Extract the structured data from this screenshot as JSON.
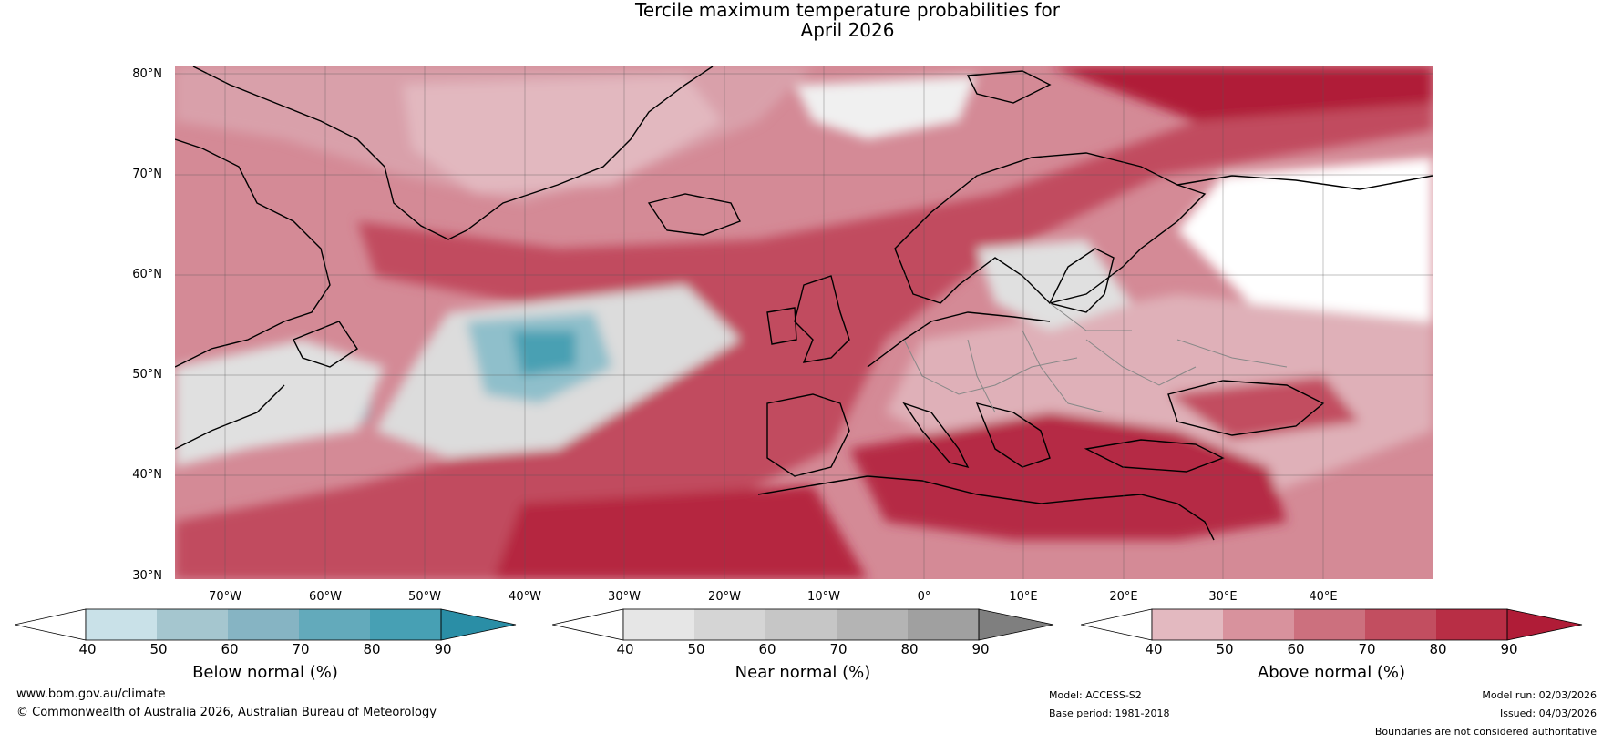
{
  "title": {
    "line1": "Tercile maximum temperature probabilities for",
    "line2": "April 2026"
  },
  "map": {
    "lat_labels": [
      "80°N",
      "70°N",
      "60°N",
      "50°N",
      "40°N",
      "30°N"
    ],
    "lon_labels": [
      "70°W",
      "60°W",
      "50°W",
      "40°W",
      "30°W",
      "20°W",
      "10°W",
      "0°",
      "10°E",
      "20°E",
      "30°E",
      "40°E"
    ],
    "lat_range": [
      30,
      81
    ],
    "lon_range": [
      -76,
      50
    ]
  },
  "colorbars": [
    {
      "label": "Below normal (%)",
      "ticks": [
        "40",
        "50",
        "60",
        "70",
        "80",
        "90"
      ],
      "colors": [
        "#ffffff",
        "#c9e1e8",
        "#a5c6cf",
        "#86b4c3",
        "#63aabb",
        "#47a0b4",
        "#2a8ea6"
      ]
    },
    {
      "label": "Near normal (%)",
      "ticks": [
        "40",
        "50",
        "60",
        "70",
        "80",
        "90"
      ],
      "colors": [
        "#ffffff",
        "#e6e6e6",
        "#d5d5d5",
        "#c6c6c6",
        "#b4b4b4",
        "#a0a0a0",
        "#7f7f7f"
      ]
    },
    {
      "label": "Above normal (%)",
      "ticks": [
        "40",
        "50",
        "60",
        "70",
        "80",
        "90"
      ],
      "colors": [
        "#ffffff",
        "#e3b9c0",
        "#d8929d",
        "#cc707e",
        "#c24e60",
        "#b82e45",
        "#b01c37"
      ]
    }
  ],
  "footer": {
    "website": "www.bom.gov.au/climate",
    "copyright": "© Commonwealth of Australia 2026, Australian Bureau of Meteorology",
    "model": "Model: ACCESS-S2",
    "base_period": "Base period: 1981-2018",
    "model_run": "Model run: 02/03/2026",
    "issued": "Issued: 04/03/2026",
    "disclaimer": "Boundaries are not considered authoritative"
  }
}
